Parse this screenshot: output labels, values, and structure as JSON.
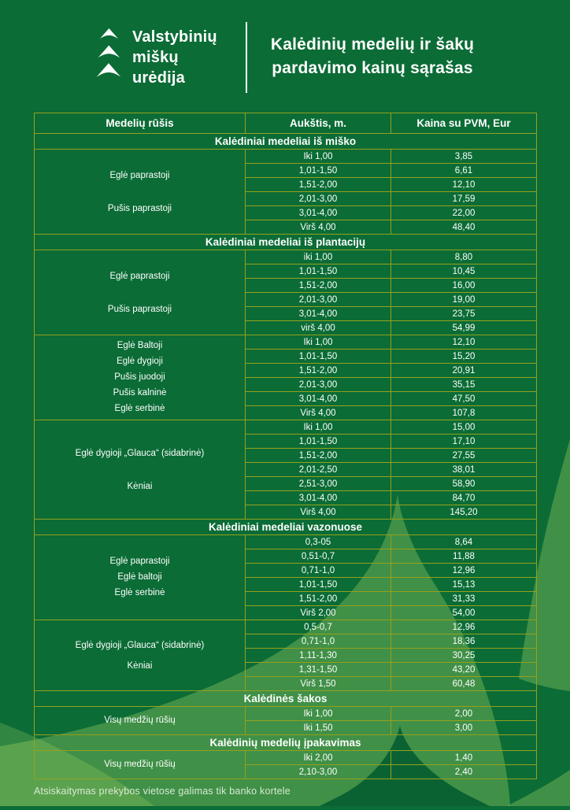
{
  "brand": {
    "name_lines": [
      "Valstybinių",
      "miškų",
      "urėdija"
    ]
  },
  "title": {
    "line1": "Kalėdinių medelių ir šakų",
    "line2": "pardavimo kainų sąrašas"
  },
  "table": {
    "columns": [
      "Medelių rūšis",
      "Aukštis, m.",
      "Kaina su PVM, Eur"
    ],
    "sections": [
      {
        "title": "Kalėdiniai medeliai iš miško",
        "groups": [
          {
            "species": [
              "Eglė paprastoji",
              "Pušis paprastoji"
            ],
            "rows": [
              {
                "height": "Iki 1,00",
                "price": "3,85"
              },
              {
                "height": "1,01-1,50",
                "price": "6,61"
              },
              {
                "height": "1,51-2,00",
                "price": "12,10"
              },
              {
                "height": "2,01-3,00",
                "price": "17,59"
              },
              {
                "height": "3,01-4,00",
                "price": "22,00"
              },
              {
                "height": "Virš 4,00",
                "price": "48,40"
              }
            ]
          }
        ]
      },
      {
        "title": "Kalėdiniai medeliai iš plantacijų",
        "groups": [
          {
            "species": [
              "Eglė paprastoji",
              "Pušis paprastoji"
            ],
            "rows": [
              {
                "height": "iki 1,00",
                "price": "8,80"
              },
              {
                "height": "1,01-1,50",
                "price": "10,45"
              },
              {
                "height": "1,51-2,00",
                "price": "16,00"
              },
              {
                "height": "2,01-3,00",
                "price": "19,00"
              },
              {
                "height": "3,01-4,00",
                "price": "23,75"
              },
              {
                "height": "virš 4,00",
                "price": "54,99"
              }
            ]
          },
          {
            "species": [
              "Eglė Baltoji",
              "Eglė dygioji",
              "Pušis juodoji",
              "Pušis kalninė",
              "Eglė serbinė"
            ],
            "rows": [
              {
                "height": "Iki 1,00",
                "price": "12,10"
              },
              {
                "height": "1,01-1,50",
                "price": "15,20"
              },
              {
                "height": "1,51-2,00",
                "price": "20,91"
              },
              {
                "height": "2,01-3,00",
                "price": "35,15"
              },
              {
                "height": "3,01-4,00",
                "price": "47,50"
              },
              {
                "height": "Virš 4,00",
                "price": "107,8"
              }
            ]
          },
          {
            "species": [
              "Eglė dygioji „Glauca“ (sidabrinė)",
              "Kėniai"
            ],
            "rows": [
              {
                "height": "Iki 1,00",
                "price": "15,00"
              },
              {
                "height": "1,01-1,50",
                "price": "17,10"
              },
              {
                "height": "1,51-2,00",
                "price": "27,55"
              },
              {
                "height": "2,01-2,50",
                "price": "38,01"
              },
              {
                "height": "2,51-3,00",
                "price": "58,90"
              },
              {
                "height": "3,01-4,00",
                "price": "84,70"
              },
              {
                "height": "Virš 4,00",
                "price": "145,20"
              }
            ]
          }
        ]
      },
      {
        "title": "Kalėdiniai medeliai vazonuose",
        "groups": [
          {
            "species": [
              "Eglė paprastoji",
              "Eglė baltoji",
              "Eglė serbinė"
            ],
            "rows": [
              {
                "height": "0,3-05",
                "price": "8,64"
              },
              {
                "height": "0,51-0,7",
                "price": "11,88"
              },
              {
                "height": "0,71-1,0",
                "price": "12,96"
              },
              {
                "height": "1,01-1,50",
                "price": "15,13"
              },
              {
                "height": "1,51-2,00",
                "price": "31,33"
              },
              {
                "height": "Virš 2,00",
                "price": "54,00"
              }
            ]
          },
          {
            "species": [
              "Eglė dygioji „Glauca“ (sidabrinė)",
              "Kėniai"
            ],
            "rows": [
              {
                "height": "0,5-0,7",
                "price": "12,96"
              },
              {
                "height": "0,71-1,0",
                "price": "18,36"
              },
              {
                "height": "1,11-1,30",
                "price": "30,25"
              },
              {
                "height": "1,31-1,50",
                "price": "43,20"
              },
              {
                "height": "Virš 1,50",
                "price": "60,48"
              }
            ]
          }
        ]
      },
      {
        "title": "Kalėdinės šakos",
        "groups": [
          {
            "species": [
              "Visų medžių rūšių"
            ],
            "rows": [
              {
                "height": "Iki 1,00",
                "price": "2,00"
              },
              {
                "height": "Iki 1,50",
                "price": "3,00"
              }
            ]
          }
        ]
      },
      {
        "title": "Kalėdinių medelių įpakavimas",
        "groups": [
          {
            "species": [
              "Visų medžių rūšių"
            ],
            "rows": [
              {
                "height": "Iki 2,00",
                "price": "1,40"
              },
              {
                "height": "2,10-3,00",
                "price": "2,40"
              }
            ]
          }
        ]
      }
    ]
  },
  "footer": {
    "note": "Atsiskaitymas prekybos vietose galimas tik banko kortele"
  },
  "icons": {
    "logo": "fir-tree-chevrons-icon"
  },
  "colors": {
    "background": "#0B6C36",
    "table_border": "#95A11D",
    "text": "#FFFFFF",
    "light_tree_overlay": "#BCE36F",
    "dark_tree": "#0A6232"
  }
}
